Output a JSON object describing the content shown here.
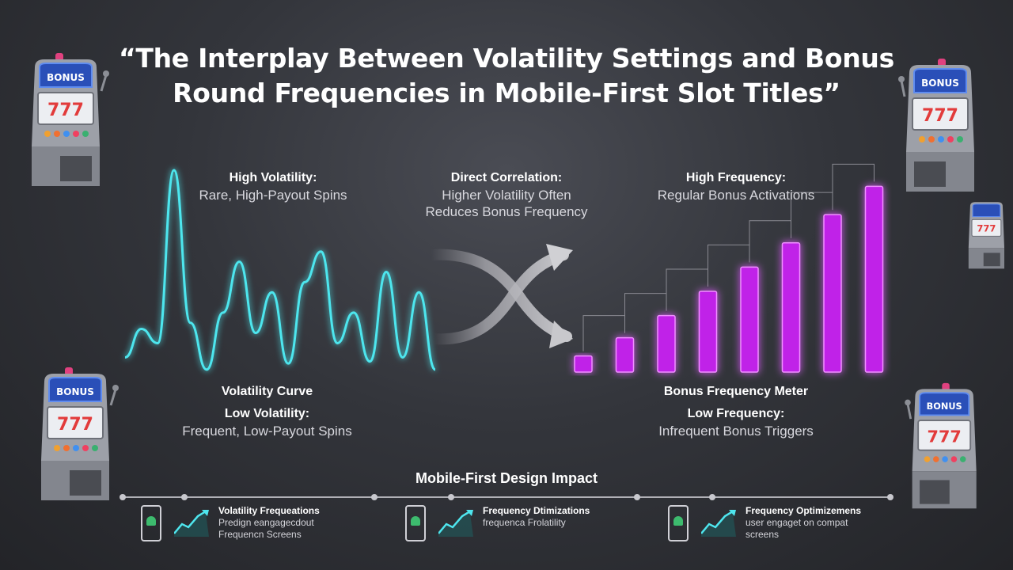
{
  "title": "“The Interplay Between Volatility Settings and Bonus Round Frequencies in Mobile-First Slot Titles”",
  "labels": {
    "high_volatility_title": "High Volatility:",
    "high_volatility_desc": "Rare, High-Payout Spins",
    "correlation_title": "Direct Correlation:",
    "correlation_line1": "Higher Volatility Often",
    "correlation_line2": "Reduces Bonus Frequency",
    "high_frequency_title": "High Frequency:",
    "high_frequency_desc": "Regular Bonus Activations",
    "volatility_curve": "Volatility Curve",
    "low_volatility_title": "Low Volatility:",
    "low_volatility_desc": "Frequent, Low-Payout Spins",
    "frequency_meter": "Bonus Frequency Meter",
    "low_frequency_title": "Low Frequency:",
    "low_frequency_desc": "Infrequent Bonus Triggers"
  },
  "slot_badge": "BONUS",
  "slot_reels": "777",
  "colors": {
    "volatility_curve": "#4ee6ee",
    "frequency_bars": "#c020e8",
    "arrows": "#9a9aa0"
  },
  "volatility_curve_levels": [
    0.08,
    0.22,
    0.15,
    1.0,
    0.25,
    0.02,
    0.3,
    0.55,
    0.2,
    0.4,
    0.05,
    0.45,
    0.6,
    0.15,
    0.3,
    0.06,
    0.5,
    0.08,
    0.4,
    0.02
  ],
  "frequency_bar_levels": [
    0.08,
    0.17,
    0.28,
    0.4,
    0.52,
    0.64,
    0.78,
    0.92
  ],
  "impact": {
    "title": "Mobile-First Design Impact",
    "cards": [
      {
        "title": "Volatility Frequeations",
        "line1": "Predign eangagecdout",
        "line2": "Frequencn Screens"
      },
      {
        "title": "Frequency Dtimizations",
        "line1": "frequenca Frolatility",
        "line2": ""
      },
      {
        "title": "Frequency Optimizemens",
        "line1": "user engaget on compat",
        "line2": "screens"
      }
    ]
  }
}
